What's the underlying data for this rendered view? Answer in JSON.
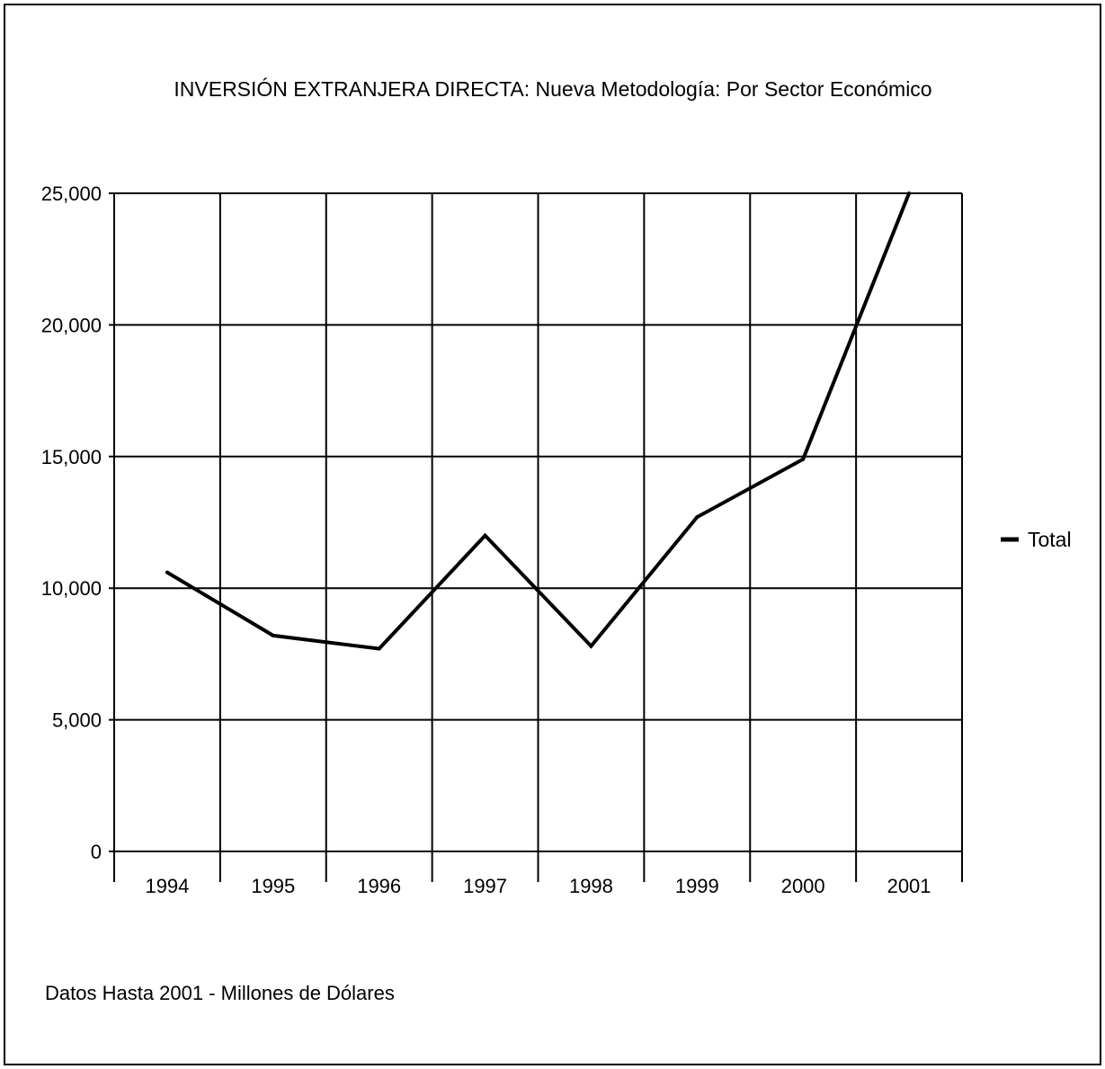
{
  "chart_data": {
    "type": "line",
    "title": "INVERSIÓN EXTRANJERA DIRECTA: Nueva Metodología: Por Sector Económico",
    "footnote": "Datos Hasta 2001 - Millones de Dólares",
    "categories": [
      "1994",
      "1995",
      "1996",
      "1997",
      "1998",
      "1999",
      "2000",
      "2001"
    ],
    "series": [
      {
        "name": "Total",
        "values": [
          10600,
          8200,
          7700,
          12000,
          7800,
          12700,
          14900,
          25000
        ],
        "color": "#000000"
      }
    ],
    "ylim": [
      0,
      25000
    ],
    "yticks": [
      0,
      5000,
      10000,
      15000,
      20000,
      25000
    ],
    "ytick_labels": [
      "0",
      "5,000",
      "10,000",
      "15,000",
      "20,000",
      "25,000"
    ],
    "grid": true,
    "legend_position": "right"
  }
}
